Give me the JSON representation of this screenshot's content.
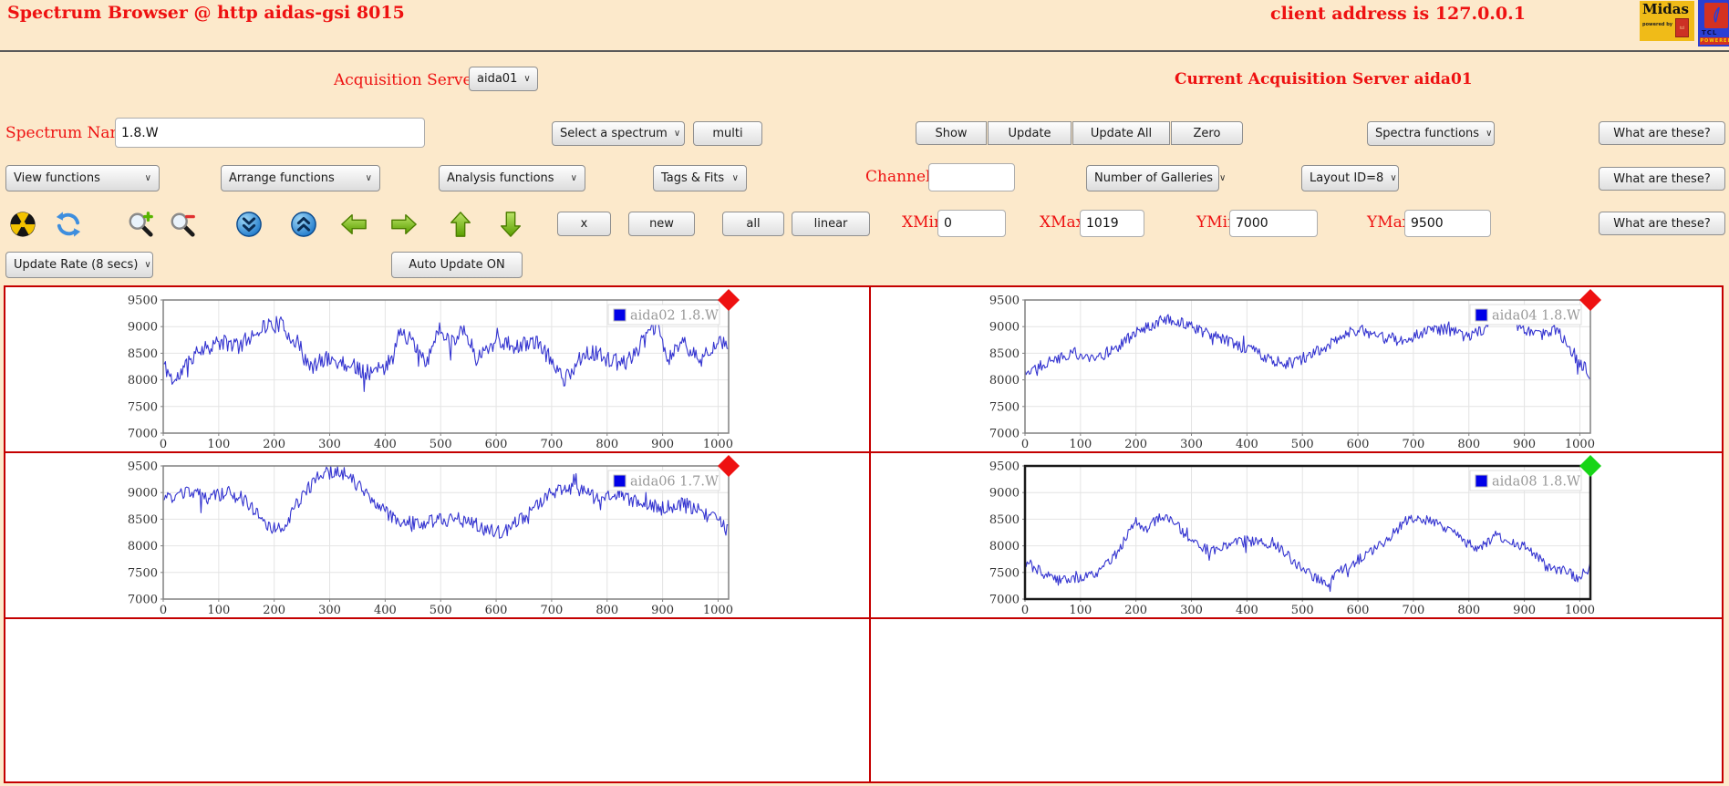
{
  "window": {
    "title": "Spectrum Browser @ http aidas-gsi 8015",
    "client_address": "client address is 127.0.0.1"
  },
  "logos": {
    "midas_text": "Midas",
    "midas_powered": "powered by",
    "midas_tcl": "tcl",
    "tcl_text": "TCL",
    "tcl_powered": "POWERED"
  },
  "acquisition": {
    "label": "Acquisition Servers",
    "server_selected": "aida01",
    "current": "Current Acquisition Server aida01"
  },
  "spectrum_row": {
    "name_label": "Spectrum Name:",
    "name_value": "1.8.W",
    "select_spectrum_label": "Select a spectrum",
    "multi_label": "multi",
    "show_label": "Show",
    "update_label": "Update",
    "update_all_label": "Update All",
    "zero_label": "Zero",
    "spectra_functions_label": "Spectra functions",
    "what_label": "What are these?"
  },
  "functions_row": {
    "view_label": "View functions",
    "arrange_label": "Arrange functions",
    "analysis_label": "Analysis functions",
    "tags_label": "Tags & Fits",
    "channel_label": "Channel:",
    "channel_value": "",
    "galleries_label": "Number of Galleries",
    "layout_label": "Layout ID=8",
    "what_label": "What are these?"
  },
  "nav_row": {
    "icons": [
      "radiation-icon",
      "refresh-icon",
      "zoom-in-icon",
      "zoom-out-icon",
      "scroll-down-icon",
      "scroll-up-icon",
      "shift-left-icon",
      "shift-right-icon",
      "shift-up-icon",
      "shift-down-icon"
    ],
    "x_label": "x",
    "new_label": "new",
    "all_label": "all",
    "linear_label": "linear",
    "xmin_label": "XMin",
    "xmin_value": "0",
    "xmax_label": "XMax",
    "xmax_value": "1019",
    "ymin_label": "YMin",
    "ymin_value": "7000",
    "ymax_label": "YMax",
    "ymax_value": "9500",
    "what_label": "What are these?"
  },
  "update_row": {
    "rate_label": "Update Rate (8 secs)",
    "auto_label": "Auto Update ON"
  },
  "colors": {
    "background": "#fce9cb",
    "red_text": "#ee1111",
    "table_border": "#c40000",
    "spectrum_line": "#3535d0",
    "legend_square": "#0000e8",
    "marker_red": "#ee1111",
    "marker_green": "#17d517"
  },
  "chart_data": [
    {
      "type": "line",
      "name": "aida02",
      "legend": "aida02 1.8.W",
      "line_color": "#3535d0",
      "frame_color": "#808080",
      "frame_width": 1.5,
      "marker": "red-diamond",
      "marker_color": "#ee1111",
      "xlim": [
        0,
        1019
      ],
      "ylim": [
        7000,
        9500
      ],
      "x_ticks": [
        0,
        100,
        200,
        300,
        400,
        500,
        600,
        700,
        800,
        900,
        1000
      ],
      "y_ticks": [
        7000,
        7500,
        8000,
        8500,
        9000,
        9500
      ],
      "keypoints": [
        [
          0,
          8300
        ],
        [
          20,
          7950
        ],
        [
          60,
          8550
        ],
        [
          100,
          8700
        ],
        [
          140,
          8650
        ],
        [
          175,
          9000
        ],
        [
          210,
          9050
        ],
        [
          245,
          8650
        ],
        [
          265,
          8200
        ],
        [
          290,
          8400
        ],
        [
          330,
          8300
        ],
        [
          370,
          8150
        ],
        [
          400,
          8200
        ],
        [
          430,
          8950
        ],
        [
          455,
          8600
        ],
        [
          475,
          8250
        ],
        [
          495,
          9000
        ],
        [
          520,
          8700
        ],
        [
          540,
          9000
        ],
        [
          565,
          8400
        ],
        [
          600,
          8750
        ],
        [
          640,
          8600
        ],
        [
          665,
          8750
        ],
        [
          690,
          8500
        ],
        [
          725,
          8000
        ],
        [
          760,
          8550
        ],
        [
          800,
          8400
        ],
        [
          830,
          8300
        ],
        [
          860,
          8650
        ],
        [
          890,
          9050
        ],
        [
          910,
          8350
        ],
        [
          935,
          8750
        ],
        [
          965,
          8350
        ],
        [
          990,
          8650
        ],
        [
          1019,
          8700
        ]
      ],
      "noise": 160,
      "seed": 11
    },
    {
      "type": "line",
      "name": "aida04",
      "legend": "aida04 1.8.W",
      "line_color": "#3535d0",
      "frame_color": "#808080",
      "frame_width": 1.5,
      "marker": "red-diamond",
      "marker_color": "#ee1111",
      "xlim": [
        0,
        1019
      ],
      "ylim": [
        7000,
        9500
      ],
      "x_ticks": [
        0,
        100,
        200,
        300,
        400,
        500,
        600,
        700,
        800,
        900,
        1000
      ],
      "y_ticks": [
        7000,
        7500,
        8000,
        8500,
        9000,
        9500
      ],
      "keypoints": [
        [
          0,
          8150
        ],
        [
          40,
          8350
        ],
        [
          90,
          8500
        ],
        [
          130,
          8400
        ],
        [
          170,
          8650
        ],
        [
          210,
          8950
        ],
        [
          250,
          9150
        ],
        [
          290,
          9050
        ],
        [
          330,
          8850
        ],
        [
          370,
          8700
        ],
        [
          410,
          8550
        ],
        [
          450,
          8350
        ],
        [
          480,
          8300
        ],
        [
          520,
          8500
        ],
        [
          560,
          8750
        ],
        [
          600,
          8950
        ],
        [
          640,
          8800
        ],
        [
          680,
          8750
        ],
        [
          720,
          8900
        ],
        [
          760,
          8950
        ],
        [
          800,
          8800
        ],
        [
          840,
          9050
        ],
        [
          865,
          9200
        ],
        [
          900,
          8900
        ],
        [
          930,
          8850
        ],
        [
          960,
          8950
        ],
        [
          990,
          8450
        ],
        [
          1019,
          8100
        ]
      ],
      "noise": 110,
      "seed": 22
    },
    {
      "type": "line",
      "name": "aida06",
      "legend": "aida06 1.7.W",
      "line_color": "#3535d0",
      "frame_color": "#808080",
      "frame_width": 1.5,
      "marker": "red-diamond",
      "marker_color": "#ee1111",
      "xlim": [
        0,
        1019
      ],
      "ylim": [
        7000,
        9500
      ],
      "x_ticks": [
        0,
        100,
        200,
        300,
        400,
        500,
        600,
        700,
        800,
        900,
        1000
      ],
      "y_ticks": [
        7000,
        7500,
        8000,
        8500,
        9000,
        9500
      ],
      "keypoints": [
        [
          0,
          8850
        ],
        [
          40,
          9000
        ],
        [
          80,
          8900
        ],
        [
          120,
          9000
        ],
        [
          155,
          8750
        ],
        [
          190,
          8350
        ],
        [
          215,
          8300
        ],
        [
          250,
          8950
        ],
        [
          285,
          9350
        ],
        [
          320,
          9400
        ],
        [
          350,
          9150
        ],
        [
          385,
          8750
        ],
        [
          420,
          8500
        ],
        [
          460,
          8400
        ],
        [
          500,
          8500
        ],
        [
          545,
          8500
        ],
        [
          580,
          8300
        ],
        [
          615,
          8250
        ],
        [
          655,
          8600
        ],
        [
          700,
          9000
        ],
        [
          740,
          9100
        ],
        [
          780,
          8900
        ],
        [
          820,
          8950
        ],
        [
          860,
          8800
        ],
        [
          900,
          8700
        ],
        [
          940,
          8800
        ],
        [
          970,
          8600
        ],
        [
          1000,
          8500
        ],
        [
          1019,
          8250
        ]
      ],
      "noise": 130,
      "seed": 33
    },
    {
      "type": "line",
      "name": "aida08",
      "legend": "aida08 1.8.W",
      "line_color": "#3535d0",
      "frame_color": "#1a1a1a",
      "frame_width": 2.5,
      "marker": "green-diamond",
      "marker_color": "#17d517",
      "xlim": [
        0,
        1019
      ],
      "ylim": [
        7000,
        9500
      ],
      "x_ticks": [
        0,
        100,
        200,
        300,
        400,
        500,
        600,
        700,
        800,
        900,
        1000
      ],
      "y_ticks": [
        7000,
        7500,
        8000,
        8500,
        9000,
        9500
      ],
      "keypoints": [
        [
          0,
          7700
        ],
        [
          30,
          7500
        ],
        [
          60,
          7350
        ],
        [
          100,
          7400
        ],
        [
          130,
          7500
        ],
        [
          165,
          7850
        ],
        [
          200,
          8450
        ],
        [
          220,
          8300
        ],
        [
          245,
          8550
        ],
        [
          275,
          8400
        ],
        [
          300,
          8050
        ],
        [
          335,
          7900
        ],
        [
          365,
          8000
        ],
        [
          395,
          8100
        ],
        [
          425,
          8050
        ],
        [
          455,
          8000
        ],
        [
          485,
          7700
        ],
        [
          515,
          7450
        ],
        [
          545,
          7250
        ],
        [
          565,
          7500
        ],
        [
          595,
          7700
        ],
        [
          625,
          7900
        ],
        [
          655,
          8150
        ],
        [
          685,
          8450
        ],
        [
          705,
          8550
        ],
        [
          735,
          8450
        ],
        [
          765,
          8300
        ],
        [
          795,
          8050
        ],
        [
          820,
          7950
        ],
        [
          850,
          8200
        ],
        [
          880,
          8050
        ],
        [
          910,
          7950
        ],
        [
          940,
          7600
        ],
        [
          970,
          7550
        ],
        [
          995,
          7400
        ],
        [
          1019,
          7600
        ]
      ],
      "noise": 95,
      "seed": 44
    }
  ]
}
